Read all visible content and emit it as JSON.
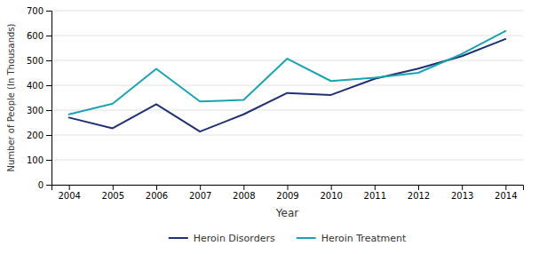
{
  "chart_data": {
    "type": "line",
    "x": [
      2004,
      2005,
      2006,
      2007,
      2008,
      2009,
      2010,
      2011,
      2012,
      2013,
      2014
    ],
    "series": [
      {
        "name": "Heroin Disorders",
        "color": "#1f3172",
        "values": [
          270,
          227,
          324,
          214,
          283,
          369,
          361,
          426,
          467,
          517,
          586
        ]
      },
      {
        "name": "Heroin Treatment",
        "color": "#1aa3b1",
        "values": [
          283,
          326,
          466,
          335,
          341,
          507,
          417,
          430,
          450,
          526,
          618
        ]
      }
    ],
    "xlabel": "Year",
    "ylabel": "Number of People (In Thousands)",
    "xlim": [
      2003.6,
      2014.4
    ],
    "xticks": [
      2004,
      2005,
      2006,
      2007,
      2008,
      2009,
      2010,
      2011,
      2012,
      2013,
      2014
    ],
    "ylim": [
      0,
      700
    ],
    "yticks": [
      0,
      100,
      200,
      300,
      400,
      500,
      600,
      700
    ],
    "grid": true,
    "legend": "bottom"
  }
}
